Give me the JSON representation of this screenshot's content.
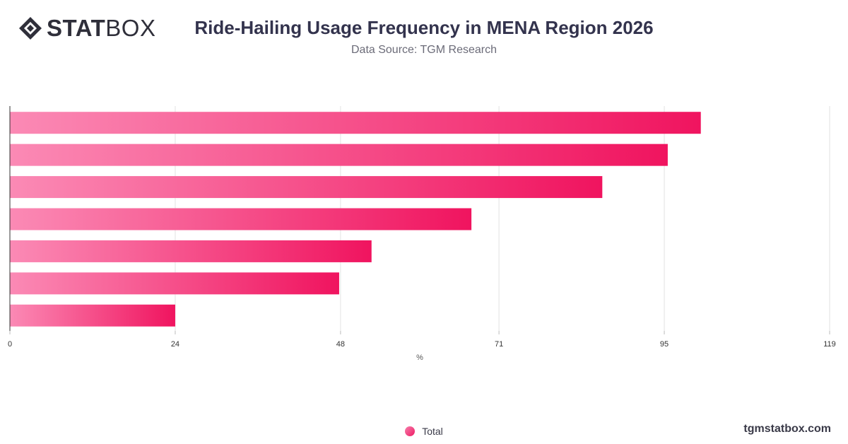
{
  "header": {
    "logo_text_bold": "STAT",
    "logo_text_light": "BOX",
    "title": "Ride-Hailing Usage Frequency in MENA Region 2026",
    "subtitle": "Data Source: TGM Research"
  },
  "legend": {
    "label": "Total"
  },
  "footer": {
    "watermark": "tgmstatbox.com"
  },
  "colors": {
    "bar_start": "#fb8ab5",
    "bar_end": "#f0145f",
    "grid": "#e2e2e2",
    "axis": "#333333"
  },
  "chart_data": {
    "type": "bar",
    "orientation": "horizontal",
    "title": "Ride-Hailing Usage Frequency in MENA Region 2026",
    "subtitle": "Data Source: TGM Research",
    "xlabel": "%",
    "ylabel": "",
    "xlim": [
      0,
      119
    ],
    "x_ticks": [
      "0",
      "24",
      "48",
      "71",
      "95",
      "119"
    ],
    "tick_values": [
      0,
      24,
      48,
      71,
      95,
      119
    ],
    "categories": [
      "",
      "",
      "",
      "",
      "",
      "",
      ""
    ],
    "series": [
      {
        "name": "Total",
        "values": [
          100.3,
          95.5,
          86,
          67,
          52.5,
          47.8,
          24
        ]
      }
    ],
    "grid": true,
    "legend_position": "bottom-center"
  }
}
